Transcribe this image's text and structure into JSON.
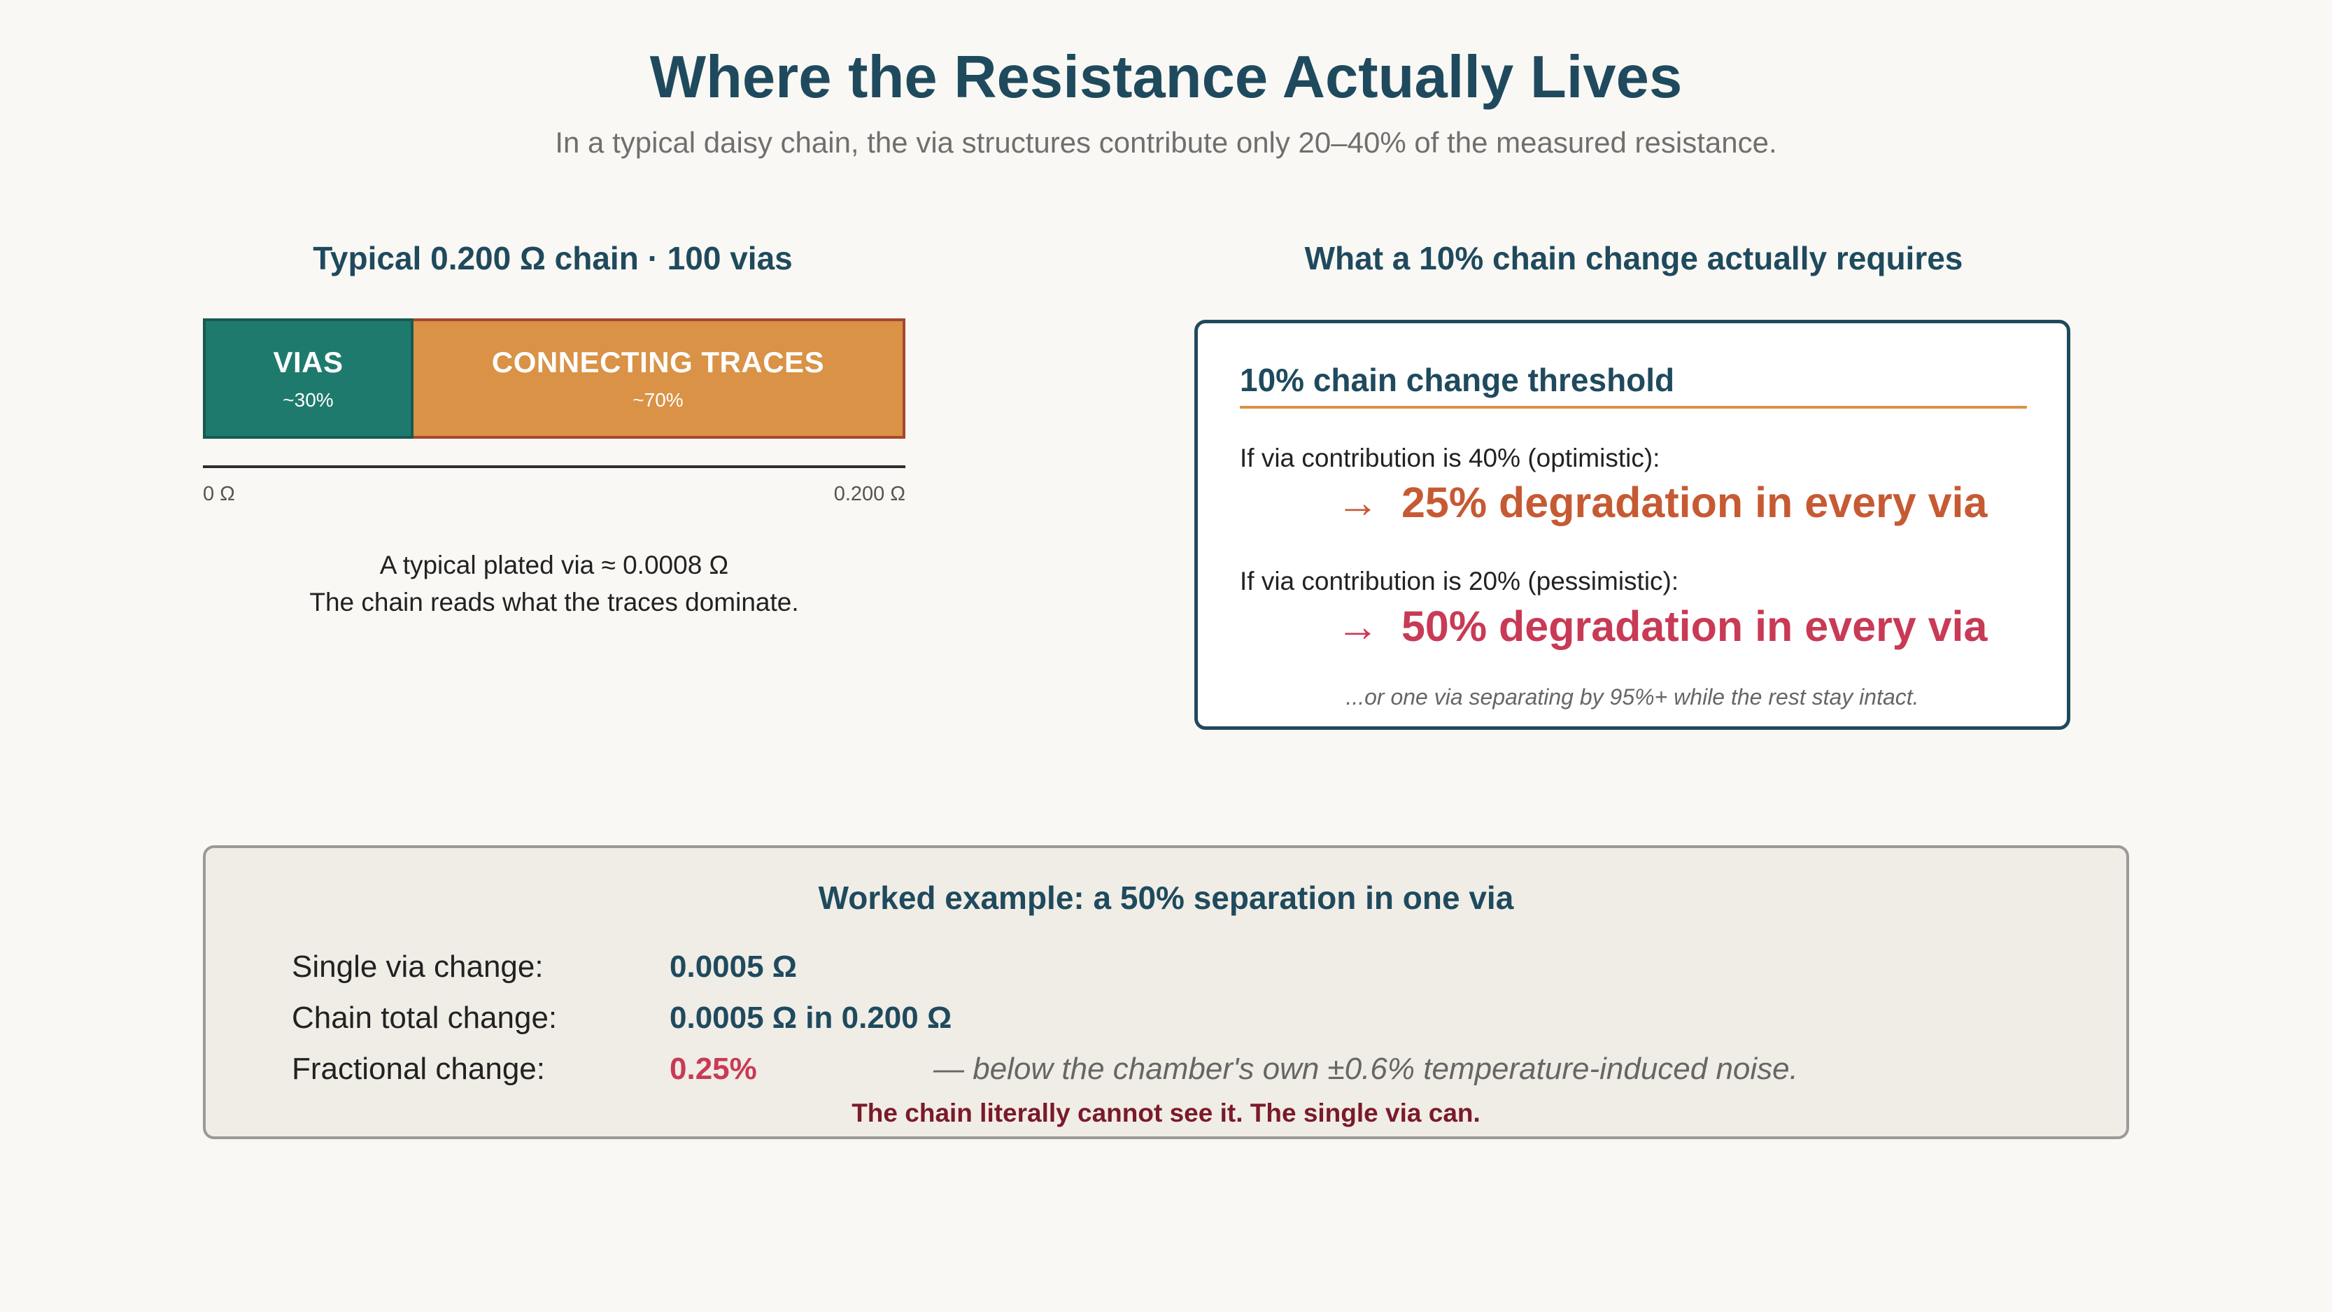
{
  "title": "Where the Resistance Actually Lives",
  "subtitle": "In a typical daisy chain, the via structures contribute only 20–40% of the measured resistance.",
  "left_panel": {
    "title": "Typical 0.200 Ω chain · 100 vias",
    "segments": [
      {
        "label": "VIAS",
        "pct_label": "~30%",
        "share": 0.3,
        "color": "#1f7a6e"
      },
      {
        "label": "CONNECTING TRACES",
        "pct_label": "~70%",
        "share": 0.7,
        "color": "#d99246"
      }
    ],
    "axis_min": "0 Ω",
    "axis_max": "0.200 Ω",
    "note_1": "A typical plated via ≈ 0.0008 Ω",
    "note_2": "The chain reads what the traces dominate."
  },
  "right_panel": {
    "title": "What a 10% chain change actually requires",
    "card_heading": "10% chain change threshold",
    "optimistic_line": "If via contribution is 40% (optimistic):",
    "optimistic_result": "25% degradation in every via",
    "pessimistic_line": "If via contribution is 20% (pessimistic):",
    "pessimistic_result": "50% degradation in every via",
    "arrow": "→",
    "footnote": "...or one via separating by 95%+ while the rest stay intact."
  },
  "worked_example": {
    "title": "Worked example: a 50% separation in one via",
    "rows": [
      {
        "label": "Single via change:",
        "value": "0.0005 Ω"
      },
      {
        "label": "Chain total change:",
        "value": "0.0005 Ω in 0.200 Ω"
      },
      {
        "label": "Fractional change:",
        "value": "0.25%",
        "note": "— below the chamber's own ±0.6% temperature-induced noise."
      }
    ],
    "conclusion": "The chain literally cannot see it. The single via can."
  },
  "colors": {
    "title": "#1f4a5e",
    "vias": "#1f7a6e",
    "traces": "#d99246",
    "optimistic": "#c65a33",
    "pessimistic": "#c83a55",
    "conclusion": "#7a1a2a"
  }
}
